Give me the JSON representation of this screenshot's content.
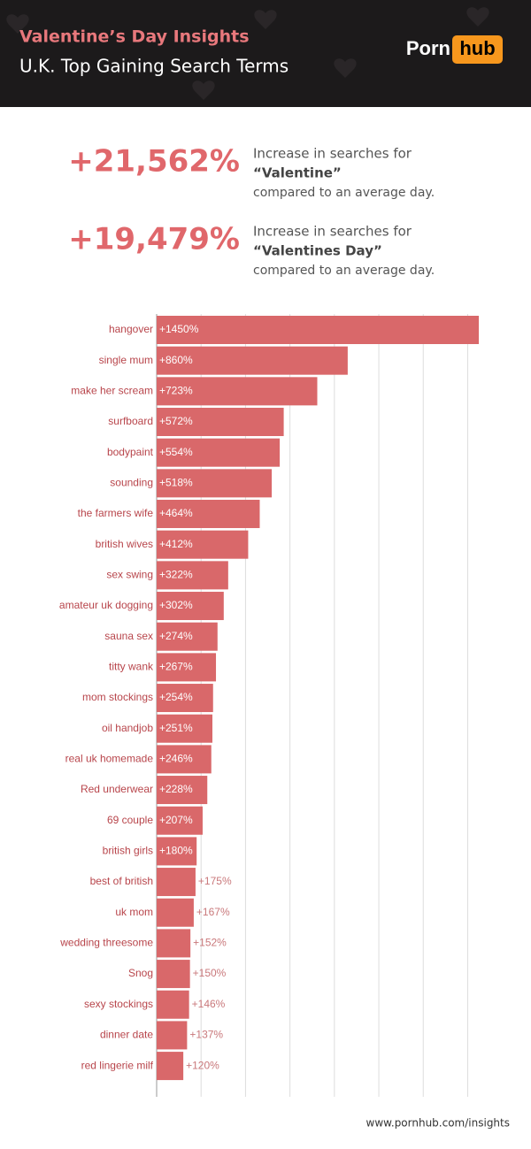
{
  "chart_data": {
    "type": "bar",
    "orientation": "horizontal",
    "title": "Valentine’s Day Insights",
    "subtitle": "U.K. Top Gaining Search Terms",
    "categories": [
      "hangover",
      "single mum",
      "make her scream",
      "surfboard",
      "bodypaint",
      "sounding",
      "the farmers wife",
      "british wives",
      "sex swing",
      "amateur uk dogging",
      "sauna sex",
      "titty wank",
      "mom stockings",
      "oil handjob",
      "real uk homemade",
      "Red underwear",
      "69 couple",
      "british girls",
      "best of british",
      "uk mom",
      "wedding threesome",
      "Snog",
      "sexy stockings",
      "dinner date",
      "red lingerie milf"
    ],
    "values": [
      1450,
      860,
      723,
      572,
      554,
      518,
      464,
      412,
      322,
      302,
      274,
      267,
      254,
      251,
      246,
      228,
      207,
      180,
      175,
      167,
      152,
      150,
      146,
      137,
      120
    ],
    "value_labels": [
      "+1450%",
      "+860%",
      "+723%",
      "+572%",
      "+554%",
      "+518%",
      "+464%",
      "+412%",
      "+322%",
      "+302%",
      "+274%",
      "+267%",
      "+254%",
      "+251%",
      "+246%",
      "+228%",
      "+207%",
      "+180%",
      "+175%",
      "+167%",
      "+152%",
      "+150%",
      "+146%",
      "+137%",
      "+120%"
    ],
    "color": "#d9686a",
    "xlim": [
      0,
      1450
    ],
    "xticks": [
      0,
      200,
      400,
      600,
      800,
      1000,
      1200,
      1400
    ],
    "grid": true
  },
  "logo": {
    "left": "Porn",
    "right": "hub"
  },
  "stats": [
    {
      "value": "+21,562%",
      "line1": "Increase in searches for",
      "term": "“Valentine”",
      "line3": "compared to an average day."
    },
    {
      "value": "+19,479%",
      "line1": "Increase in searches for",
      "term": "“Valentines Day”",
      "line3": "compared to an average day."
    }
  ],
  "source": "www.pornhub.com/insights"
}
